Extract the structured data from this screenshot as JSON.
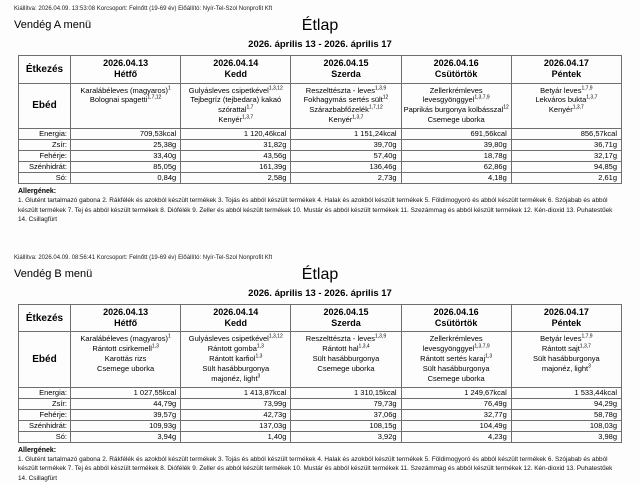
{
  "menus": [
    {
      "issued_line": "Kiállítva: 2026.04.09. 13:53:08 Korcsoport: Felnőtt (19-69 év) Előállító: Nyír-Tel-Szol Nonprofit Kft",
      "menu_name": "Vendég A menü",
      "title": "Étlap",
      "date_range": "2026. április 13 - 2026. április 17",
      "table": {
        "meal_header": "Étkezés",
        "meal_label": "Ebéd",
        "days": [
          {
            "date": "2026.04.13",
            "day": "Hétfő",
            "items": [
              {
                "name": "Karalábéleves (magyaros)",
                "allergens": "1"
              },
              {
                "name": "Bolognai spagetti",
                "allergens": "1,7,12"
              }
            ]
          },
          {
            "date": "2026.04.14",
            "day": "Kedd",
            "items": [
              {
                "name": "Gulyásleves csipetkével",
                "allergens": "1,3,12"
              },
              {
                "name": "Tejbegríz (tejbedara) kakaó szórattal",
                "allergens": "1,7"
              },
              {
                "name": "Kenyér",
                "allergens": "1,3,7"
              }
            ]
          },
          {
            "date": "2026.04.15",
            "day": "Szerda",
            "items": [
              {
                "name": "Reszelttészta - leves",
                "allergens": "1,3,9"
              },
              {
                "name": "Fokhagymás sertés sült",
                "allergens": "12"
              },
              {
                "name": "Szárazbabfőzelék",
                "allergens": "1,7,12"
              },
              {
                "name": "Kenyér",
                "allergens": "1,3,7"
              }
            ]
          },
          {
            "date": "2026.04.16",
            "day": "Csütörtök",
            "items": [
              {
                "name": "Zellerkrémleves levesgyönggyel",
                "allergens": "1,3,7,9"
              },
              {
                "name": "Paprikás burgonya kolbásszal",
                "allergens": "12"
              },
              {
                "name": "Csemege uborka",
                "allergens": ""
              }
            ]
          },
          {
            "date": "2026.04.17",
            "day": "Péntek",
            "items": [
              {
                "name": "Betyár leves",
                "allergens": "1,7,9"
              },
              {
                "name": "Lekváros bukta",
                "allergens": "1,3,7"
              },
              {
                "name": "Kenyér",
                "allergens": "1,3,7"
              }
            ]
          }
        ],
        "nutrition": [
          {
            "label": "Energia:",
            "values": [
              "709,53kcal",
              "1 120,46kcal",
              "1 151,24kcal",
              "691,56kcal",
              "856,57kcal"
            ]
          },
          {
            "label": "Zsír:",
            "values": [
              "25,38g",
              "31,82g",
              "39,70g",
              "39,80g",
              "36,71g"
            ]
          },
          {
            "label": "Fehérje:",
            "values": [
              "33,40g",
              "43,56g",
              "57,40g",
              "18,78g",
              "32,17g"
            ]
          },
          {
            "label": "Szénhidrát:",
            "values": [
              "85,05g",
              "161,39g",
              "136,46g",
              "62,86g",
              "94,85g"
            ]
          },
          {
            "label": "Só:",
            "values": [
              "0,84g",
              "2,58g",
              "2,73g",
              "4,18g",
              "2,61g"
            ]
          }
        ]
      },
      "allergens_title": "Allergének:",
      "allergens_text": "1. Glutént tartalmazó gabona 2. Rákfélék és azokból készült termékek 3. Tojás és abból készült termékek 4. Halak és azokból készült termékek 5. Földimogyoró és abból készült termékek 6. Szójabab és abból készült termékek 7. Tej és abból készült termékek 8. Diófélék 9. Zeller és abból készült termékek 10. Mustár és abból készült termékek 11. Szezámmag és abból készült termékek 12. Kén-dioxid 13. Puhatestűek 14. Csillagfürt"
    },
    {
      "issued_line": "Kiállítva: 2026.04.09. 08:56:41 Korcsoport: Felnőtt (19-69 év) Előállító: Nyír-Tel-Szol Nonprofit Kft",
      "menu_name": "Vendég B menü",
      "title": "Étlap",
      "date_range": "2026. április 13 - 2026. április 17",
      "table": {
        "meal_header": "Étkezés",
        "meal_label": "Ebéd",
        "days": [
          {
            "date": "2026.04.13",
            "day": "Hétfő",
            "items": [
              {
                "name": "Karalábéleves (magyaros)",
                "allergens": "1"
              },
              {
                "name": "Rántott csirkemell",
                "allergens": "1,3"
              },
              {
                "name": "Karottás rizs",
                "allergens": ""
              },
              {
                "name": "Csemege uborka",
                "allergens": ""
              }
            ]
          },
          {
            "date": "2026.04.14",
            "day": "Kedd",
            "items": [
              {
                "name": "Gulyásleves csipetkével",
                "allergens": "1,3,12"
              },
              {
                "name": "Rántott gomba",
                "allergens": "1,3"
              },
              {
                "name": "Rántott karfiol",
                "allergens": "1,3"
              },
              {
                "name": "Sült hasábburgonya",
                "allergens": ""
              },
              {
                "name": "majonéz, light",
                "allergens": "3"
              }
            ]
          },
          {
            "date": "2026.04.15",
            "day": "Szerda",
            "items": [
              {
                "name": "Reszelttészta - leves",
                "allergens": "1,3,9"
              },
              {
                "name": "Rántott hal",
                "allergens": "1,3,4"
              },
              {
                "name": "Sült hasábburgonya",
                "allergens": ""
              },
              {
                "name": "Csemege uborka",
                "allergens": ""
              }
            ]
          },
          {
            "date": "2026.04.16",
            "day": "Csütörtök",
            "items": [
              {
                "name": "Zellerkrémleves levesgyönggyel",
                "allergens": "1,3,7,9"
              },
              {
                "name": "Rántott sertés karaj",
                "allergens": "1,3"
              },
              {
                "name": "Sült hasábburgonya",
                "allergens": ""
              },
              {
                "name": "Csemege uborka",
                "allergens": ""
              }
            ]
          },
          {
            "date": "2026.04.17",
            "day": "Péntek",
            "items": [
              {
                "name": "Betyár leves",
                "allergens": "1,7,9"
              },
              {
                "name": "Rántott sajt",
                "allergens": "1,3,7"
              },
              {
                "name": "Sült hasábburgonya",
                "allergens": ""
              },
              {
                "name": "majonéz, light",
                "allergens": "3"
              }
            ]
          }
        ],
        "nutrition": [
          {
            "label": "Energia:",
            "values": [
              "1 027,55kcal",
              "1 413,87kcal",
              "1 310,15kcal",
              "1 249,67kcal",
              "1 533,44kcal"
            ]
          },
          {
            "label": "Zsír:",
            "values": [
              "44,79g",
              "73,99g",
              "79,73g",
              "76,49g",
              "94,29g"
            ]
          },
          {
            "label": "Fehérje:",
            "values": [
              "39,57g",
              "42,73g",
              "37,06g",
              "32,77g",
              "58,78g"
            ]
          },
          {
            "label": "Szénhidrát:",
            "values": [
              "109,93g",
              "137,03g",
              "108,15g",
              "104,49g",
              "108,03g"
            ]
          },
          {
            "label": "Só:",
            "values": [
              "3,94g",
              "1,40g",
              "3,92g",
              "4,23g",
              "3,98g"
            ]
          }
        ]
      },
      "allergens_title": "Allergének:",
      "allergens_text": "1. Glutént tartalmazó gabona 2. Rákfélék és azokból készült termékek 3. Tojás és abból készült termékek 4. Halak és azokból készült termékek 5. Földimogyoró és abból készült termékek 6. Szójabab és abból készült termékek 7. Tej és abból készült termékek 8. Diófélék 9. Zeller és abból készült termékek 10. Mustár és abból készült termékek 11. Szezámmag és abból készült termékek 12. Kén-dioxid 13. Puhatestűek 14. Csillagfürt"
    }
  ]
}
